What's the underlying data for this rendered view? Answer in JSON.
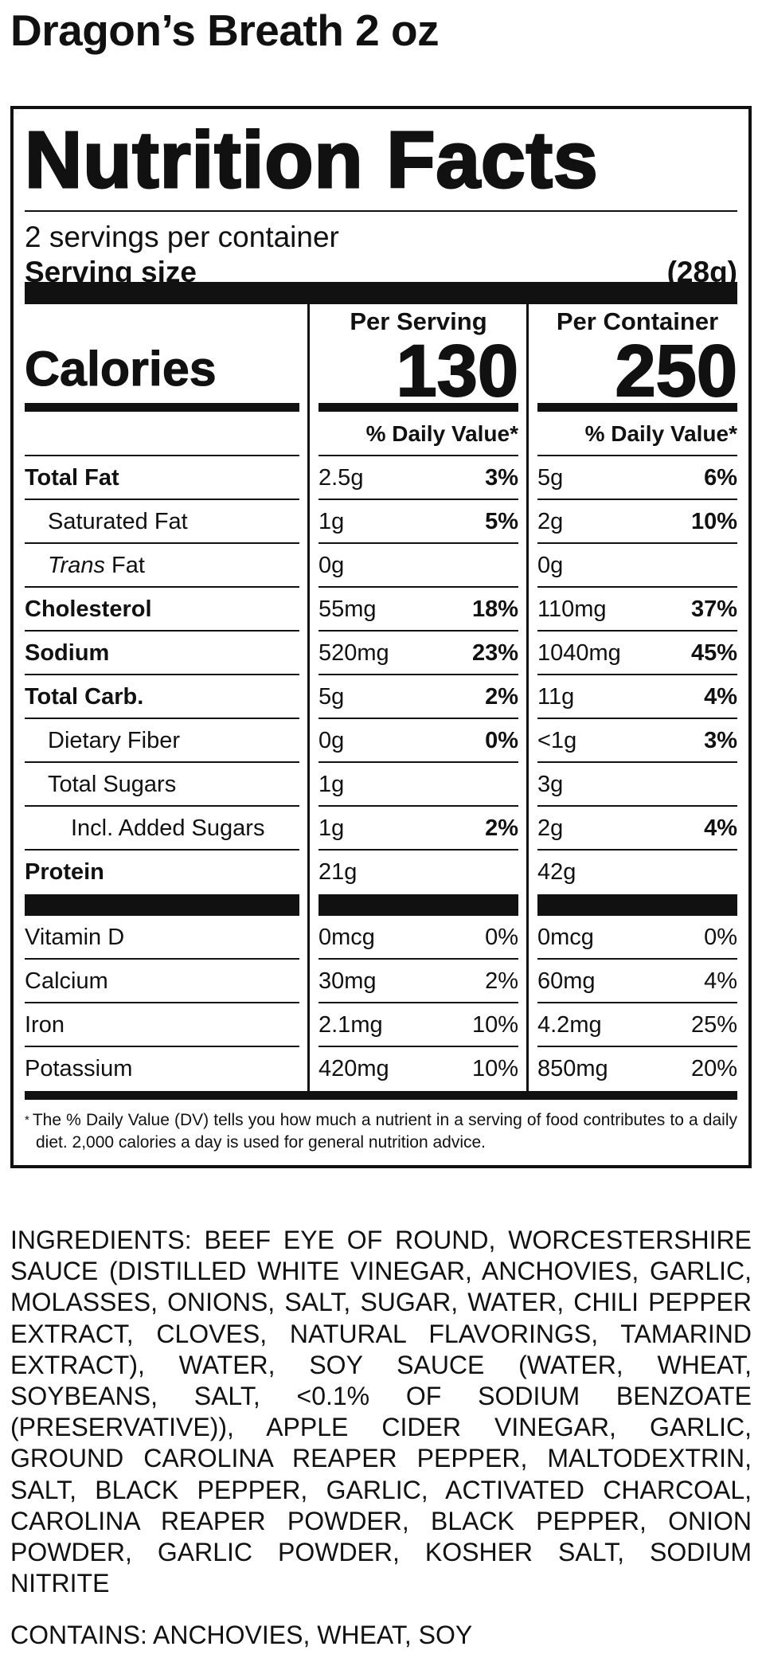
{
  "product_title": "Dragon’s Breath 2 oz",
  "panel": {
    "heading": "Nutrition Facts",
    "servings": "2 servings per container",
    "serving_size_label": "Serving size",
    "serving_size": "(28g)",
    "calories_label": "Calories",
    "columns": [
      {
        "header": "Per Serving",
        "calories": 130,
        "dv_header": "% Daily Value*"
      },
      {
        "header": "Per Container",
        "calories": 250,
        "dv_header": "% Daily Value*"
      }
    ],
    "nutrients": [
      {
        "label": "Total Fat",
        "bold": true,
        "indent": 0,
        "values": [
          [
            "2.5g",
            "3%"
          ],
          [
            "5g",
            "6%"
          ]
        ]
      },
      {
        "label": "Saturated Fat",
        "bold": false,
        "indent": 1,
        "values": [
          [
            "1g",
            "5%"
          ],
          [
            "2g",
            "10%"
          ]
        ]
      },
      {
        "label_italic": "Trans",
        "label": "Fat",
        "bold": false,
        "indent": 1,
        "values": [
          [
            "0g"
          ],
          [
            "0g"
          ]
        ]
      },
      {
        "label": "Cholesterol",
        "bold": true,
        "indent": 0,
        "values": [
          [
            "55mg",
            "18%"
          ],
          [
            "110mg",
            "37%"
          ]
        ]
      },
      {
        "label": "Sodium",
        "bold": true,
        "indent": 0,
        "values": [
          [
            "520mg",
            "23%"
          ],
          [
            "1040mg",
            "45%"
          ]
        ]
      },
      {
        "label": "Total Carb.",
        "bold": true,
        "indent": 0,
        "values": [
          [
            "5g",
            "2%"
          ],
          [
            "11g",
            "4%"
          ]
        ]
      },
      {
        "label": "Dietary Fiber",
        "bold": false,
        "indent": 1,
        "values": [
          [
            "0g",
            "0%"
          ],
          [
            "<1g",
            "3%"
          ]
        ]
      },
      {
        "label": "Total Sugars",
        "bold": false,
        "indent": 1,
        "values": [
          [
            "1g"
          ],
          [
            "3g"
          ]
        ]
      },
      {
        "label": "Incl. Added Sugars",
        "bold": false,
        "indent": 2,
        "values": [
          [
            "1g",
            "2%"
          ],
          [
            "2g",
            "4%"
          ]
        ]
      },
      {
        "label": "Protein",
        "bold": true,
        "indent": 0,
        "values": [
          [
            "21g"
          ],
          [
            "42g"
          ]
        ]
      }
    ],
    "vitamins": [
      {
        "label": "Vitamin D",
        "values": [
          [
            "0mcg",
            "0%"
          ],
          [
            "0mcg",
            "0%"
          ]
        ]
      },
      {
        "label": "Calcium",
        "values": [
          [
            "30mg",
            "2%"
          ],
          [
            "60mg",
            "4%"
          ]
        ]
      },
      {
        "label": "Iron",
        "values": [
          [
            "2.1mg",
            "10%"
          ],
          [
            "4.2mg",
            "25%"
          ]
        ]
      },
      {
        "label": "Potassium",
        "values": [
          [
            "420mg",
            "10%"
          ],
          [
            "850mg",
            "20%"
          ]
        ]
      }
    ],
    "footnote_mark": "*",
    "footnote": "The % Daily Value (DV) tells you how much a nutrient in a serving of food contributes to a daily diet. 2,000 calories a day is used for general nutrition advice."
  },
  "ingredients": "INGREDIENTS: BEEF EYE OF ROUND, WORCESTERSHIRE SAUCE (DISTILLED WHITE VINEGAR, ANCHOVIES, GARLIC, MOLASSES, ONIONS, SALT, SUGAR, WATER, CHILI PEPPER EXTRACT, CLOVES, NATURAL FLAVORINGS, TAMARIND EXTRACT), WATER, SOY SAUCE (WATER, WHEAT, SOYBEANS, SALT, <0.1% OF SODIUM BENZOATE (PRESERVATIVE)), APPLE CIDER VINEGAR, GARLIC, GROUND CAROLINA REAPER PEPPER, MALTODEXTRIN, SALT, BLACK PEPPER, GARLIC, ACTIVATED CHARCOAL, CAROLINA REAPER POWDER, BLACK PEPPER, ONION POWDER, GARLIC POWDER, KOSHER SALT, SODIUM NITRITE",
  "contains": "CONTAINS: ANCHOVIES, WHEAT, SOY"
}
